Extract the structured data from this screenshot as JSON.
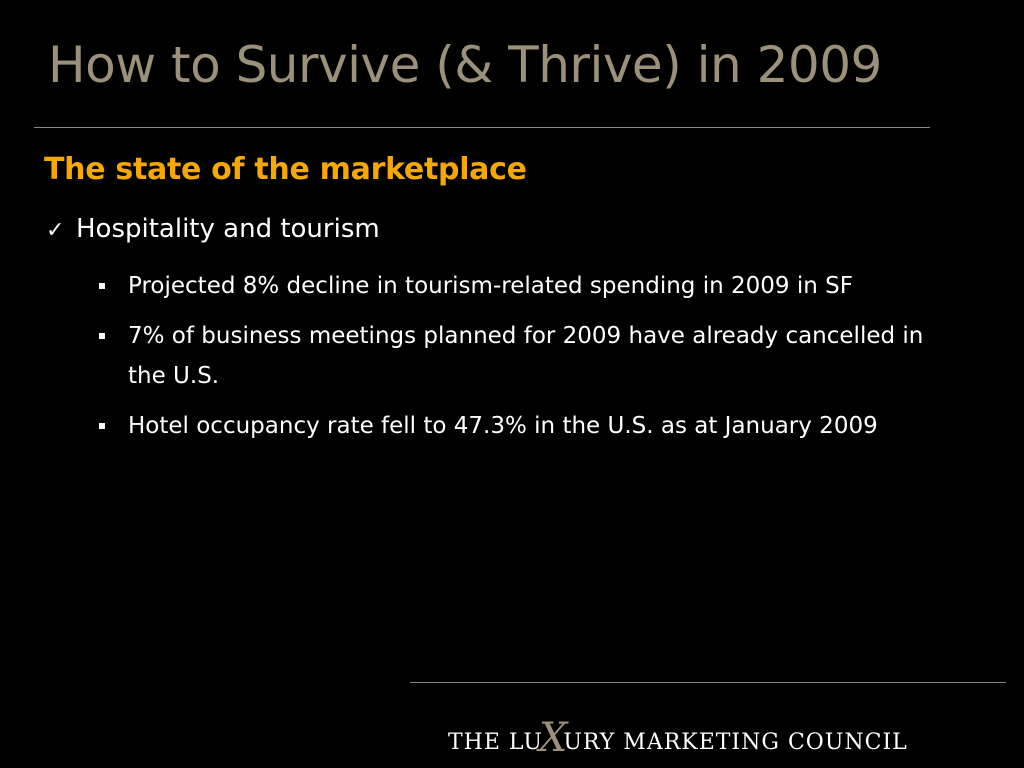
{
  "slide": {
    "title": "How to Survive (& Thrive) in 2009",
    "subtitle": "The state of the marketplace",
    "level1": {
      "check_glyph": "✓",
      "text": "Hospitality and tourism"
    },
    "bullets": [
      "Projected 8% decline in tourism-related spending in 2009 in SF",
      "7% of business meetings planned for 2009 have already cancelled in the U.S.",
      "Hotel occupancy rate fell to 47.3% in the U.S. as at January 2009"
    ]
  },
  "footer": {
    "logo_text": "THE LUXURY MARKETING COUNCIL",
    "logo_part1": "THE LU",
    "logo_x": "X",
    "logo_part2": "URY MARKETING COUNCIL"
  },
  "colors": {
    "background": "#000000",
    "title": "#9b9079",
    "subtitle": "#f5a800",
    "body": "#ffffff",
    "rule": "#8a8a8a"
  },
  "icons": {
    "level1_marker": "checkmark-icon",
    "level2_marker": "square-bullet-icon"
  }
}
